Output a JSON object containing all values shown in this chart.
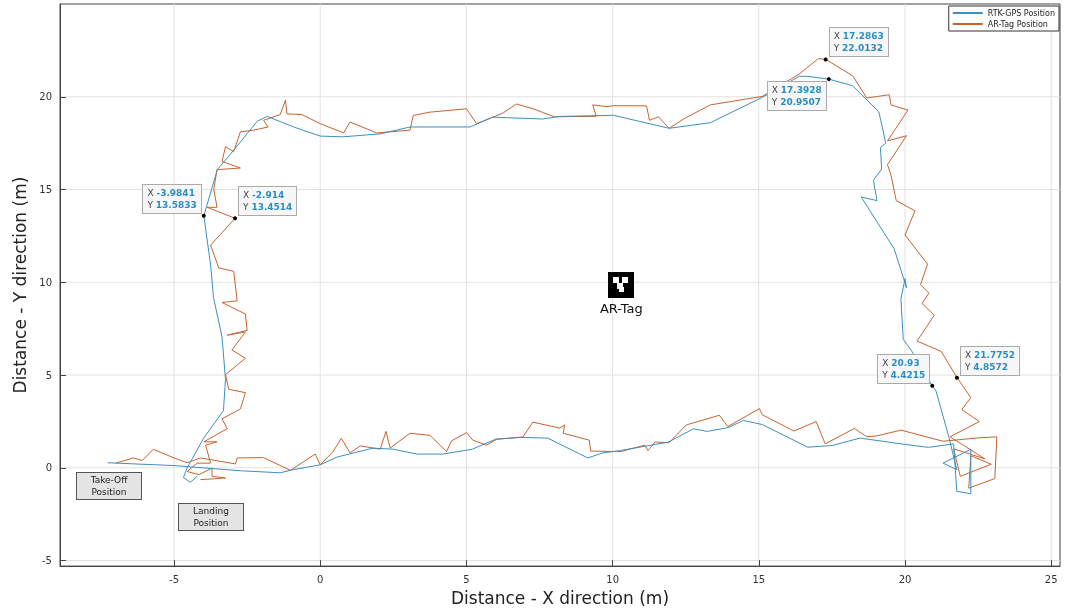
{
  "chart_data": {
    "type": "line",
    "xlabel": "Distance - X direction (m)",
    "ylabel": "Distance - Y direction (m)",
    "xlim": [
      -8.9,
      25.3
    ],
    "ylim": [
      -5.3,
      25
    ],
    "xticks": [
      -5,
      0,
      5,
      10,
      15,
      20,
      25
    ],
    "yticks": [
      -5,
      0,
      5,
      10,
      15,
      20
    ],
    "grid": true,
    "legend": "top right",
    "marker": "none",
    "line_style": "solid",
    "series": [
      {
        "name": "RTK-GPS Position",
        "color": "#3d8fc0",
        "x": [
          -7.27,
          -5.0,
          -2.73,
          -1.37,
          -0.92,
          0,
          0.58,
          1.81,
          2.5,
          3.3,
          4.2,
          5.2,
          6.0,
          6.9,
          7.78,
          9.15,
          9.66,
          10.27,
          11.9,
          12.76,
          13.24,
          13.96,
          14.47,
          15.12,
          16.67,
          17.5,
          18.46,
          19.86,
          20.8,
          21.66,
          21.77,
          22.25,
          22.25,
          21.3,
          21.77,
          21.5,
          21.06,
          20.93,
          20.24,
          19.94,
          19.86,
          20.0,
          20.05,
          19.63,
          18.5,
          19.04,
          18.92,
          19.2,
          19.16,
          19.34,
          19.16,
          19.1,
          18.2,
          17.39,
          16.67,
          16.38,
          15.12,
          13.34,
          11.93,
          10.03,
          8.19,
          7.6,
          5.9,
          5.12,
          3.07,
          2.05,
          0.78,
          0,
          -0.91,
          -1.81,
          -2.15,
          -2.97,
          -3.52,
          -3.98,
          -3.75,
          -3.65,
          -3.36,
          -3.24,
          -3.31,
          -3.99,
          -4.55,
          -4.68,
          -4.44,
          -4.21
        ],
        "values": [
          0.27,
          0.12,
          -0.16,
          -0.27,
          -0.1,
          0.16,
          0.58,
          1.06,
          1.0,
          0.74,
          0.74,
          1.0,
          1.54,
          1.64,
          1.6,
          0.53,
          0.8,
          0.93,
          1.38,
          2.1,
          1.96,
          2.17,
          2.55,
          2.33,
          1.11,
          1.2,
          1.6,
          1.29,
          1.1,
          1.29,
          -1.27,
          -1.4,
          1.0,
          0.25,
          -0.1,
          1.65,
          4.14,
          4.42,
          6.27,
          6.92,
          9.1,
          10.2,
          9.7,
          11.8,
          14.6,
          14.4,
          15.5,
          16.1,
          17.26,
          17.5,
          18.8,
          19.2,
          20.6,
          20.95,
          21.1,
          21.1,
          19.97,
          18.6,
          18.3,
          19.0,
          18.94,
          18.8,
          18.9,
          18.37,
          18.37,
          18.0,
          17.84,
          17.88,
          18.37,
          18.94,
          18.69,
          17.1,
          16.07,
          13.58,
          10.94,
          9.18,
          7.06,
          4.77,
          3.08,
          1.59,
          0,
          -0.53,
          -0.78,
          -0.46
        ]
      },
      {
        "name": "AR-Tag Position",
        "color": "#c8632e",
        "x": [
          -7.0,
          -6.38,
          -6.09,
          -5.71,
          -5.0,
          -4.55,
          -4.1,
          -2.9,
          -2.84,
          -1.94,
          -1.02,
          -0.17,
          0,
          0.44,
          0.72,
          1.02,
          1.37,
          2.05,
          2.25,
          2.39,
          3.07,
          3.75,
          4.32,
          4.49,
          5.0,
          5.22,
          5.69,
          6.04,
          6.93,
          7.27,
          8.19,
          8.36,
          8.31,
          9.2,
          9.25,
          10.27,
          11.1,
          11.21,
          11.45,
          11.93,
          12.52,
          13.65,
          13.94,
          15.02,
          15.12,
          16.2,
          16.96,
          17.27,
          18.27,
          18.69,
          19.04,
          19.86,
          21.3,
          22.49,
          23.14,
          23.07,
          22.18,
          22.25,
          22.95,
          21.89,
          21.66,
          22.73,
          21.54,
          22.54,
          21.94,
          22.25,
          21.78,
          21.24,
          20.41,
          21.0,
          20.58,
          20.82,
          20.53,
          20.77,
          20.0,
          20.34,
          19.7,
          19.52,
          19.4,
          20.05,
          19.4,
          20.1,
          19.52,
          19.46,
          18.69,
          18.21,
          17.44,
          17.29,
          17.03,
          16.38,
          15.12,
          13.34,
          12.46,
          11.93,
          11.57,
          11.26,
          11.16,
          10.03,
          9.8,
          9.32,
          9.44,
          8.01,
          7.28,
          6.71,
          6.25,
          5.35,
          5.0,
          3.75,
          3.18,
          3.07,
          1.93,
          1.02,
          0.8,
          0,
          -0.63,
          -1.14,
          -1.19,
          -1.37,
          -1.94,
          -1.78,
          -2.28,
          -2.73,
          -2.96,
          -3.24,
          -3.36,
          -2.73,
          -3.53,
          -3.64,
          -3.53,
          -3.87,
          -2.91,
          -3.75,
          -3.47,
          -2.96,
          -2.84,
          -3.36,
          -2.56,
          -2.5,
          -3.18,
          -2.56,
          -3.02,
          -2.56,
          -3.24,
          -3.13,
          -2.56,
          -2.73,
          -3.36,
          -3.18,
          -3.98,
          -3.53,
          -3.92,
          -3.75,
          -4.21,
          -4.55,
          -4.15,
          -3.7,
          -3.7,
          -3.24,
          -4.1
        ],
        "values": [
          0.25,
          0.53,
          0.39,
          1.0,
          0.53,
          0.27,
          0.53,
          0.21,
          0.53,
          0.55,
          -0.14,
          0.74,
          0.16,
          0.87,
          1.59,
          0.8,
          1.18,
          1.0,
          1.96,
          1.06,
          1.86,
          1.75,
          0.87,
          1.45,
          1.89,
          1.49,
          1.22,
          1.54,
          1.66,
          2.46,
          2.14,
          2.31,
          1.86,
          1.49,
          0.9,
          0.87,
          1.22,
          0.93,
          1.39,
          1.35,
          2.31,
          2.83,
          2.22,
          3.19,
          2.86,
          1.98,
          2.49,
          1.29,
          2.12,
          1.67,
          1.72,
          2.03,
          1.43,
          1.61,
          1.67,
          -0.58,
          -1.1,
          0.65,
          0.19,
          -0.46,
          1.02,
          0.48,
          1.67,
          2.49,
          3.14,
          3.78,
          4.86,
          6.27,
          6.83,
          8.22,
          8.86,
          9.41,
          9.87,
          10.98,
          12.55,
          13.85,
          14.4,
          15.78,
          16.34,
          17.9,
          17.62,
          19.28,
          19.56,
          20.11,
          19.93,
          21.13,
          21.87,
          22.01,
          22.05,
          21.22,
          20.02,
          19.56,
          18.83,
          18.3,
          18.92,
          18.73,
          19.51,
          19.52,
          19.47,
          19.56,
          18.95,
          18.92,
          19.35,
          19.61,
          19.12,
          18.55,
          19.35,
          19.17,
          18.99,
          18.2,
          18.05,
          18.64,
          18.05,
          18.55,
          19.04,
          19.08,
          19.82,
          19.04,
          18.73,
          18.37,
          18.2,
          18.11,
          17.05,
          17.31,
          16.51,
          16.16,
          16.07,
          15.01,
          14.04,
          14.04,
          13.45,
          12.0,
          10.77,
          10.59,
          9.0,
          8.91,
          8.29,
          7.41,
          7.15,
          7.32,
          6.35,
          5.9,
          5.02,
          4.23,
          4.05,
          3.17,
          2.64,
          2.11,
          1.4,
          1.4,
          1.22,
          0.25,
          0.25,
          -0.2,
          -0.37,
          -0.02,
          -0.46,
          -0.55,
          -0.64
        ]
      }
    ],
    "annotations": [
      {
        "text": "X -3.9841\nY 13.5833",
        "x": -3.9841,
        "y": 13.5833
      },
      {
        "text": "X -2.914\nY 13.4514",
        "x": -2.914,
        "y": 13.4514
      },
      {
        "text": "X 17.3928\nY 20.9507",
        "x": 17.3928,
        "y": 20.9507
      },
      {
        "text": "X 17.2863\nY 22.0132",
        "x": 17.2863,
        "y": 22.0132
      },
      {
        "text": "X 20.93\nY 4.4215",
        "x": 20.93,
        "y": 4.4215
      },
      {
        "text": "X 21.7752\nY 4.8572",
        "x": 21.7752,
        "y": 4.8572
      },
      "Take-Off\nPosition",
      "Landing\nPosition",
      "AR-Tag"
    ]
  }
}
